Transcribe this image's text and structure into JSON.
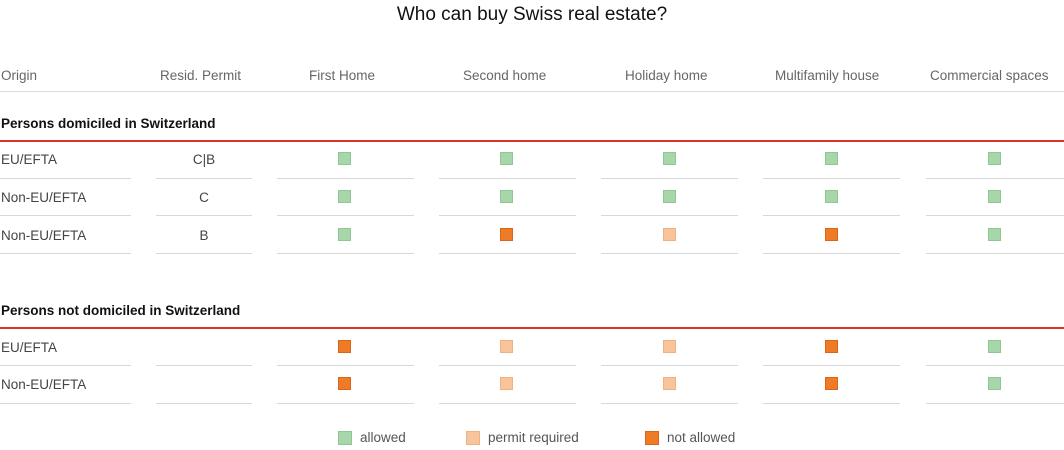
{
  "title": "Who can buy Swiss real estate?",
  "columns": [
    "Origin",
    "Resid. Permit",
    "First Home",
    "Second home",
    "Holiday home",
    "Multifamily house",
    "Commercial spaces"
  ],
  "colors": {
    "allowed": "#a6d6a9",
    "permit": "#f8c49c",
    "not_allowed": "#f07b26"
  },
  "sections": [
    {
      "title": "Persons domiciled in Switzerland",
      "rows": [
        {
          "origin": "EU/EFTA",
          "permit": "C|B",
          "status": [
            "allowed",
            "allowed",
            "allowed",
            "allowed",
            "allowed"
          ]
        },
        {
          "origin": "Non-EU/EFTA",
          "permit": "C",
          "status": [
            "allowed",
            "allowed",
            "allowed",
            "allowed",
            "allowed"
          ]
        },
        {
          "origin": "Non-EU/EFTA",
          "permit": "B",
          "status": [
            "allowed",
            "not_allowed",
            "permit",
            "not_allowed",
            "allowed"
          ]
        }
      ]
    },
    {
      "title": "Persons not domiciled in Switzerland",
      "rows": [
        {
          "origin": "EU/EFTA",
          "permit": "",
          "status": [
            "not_allowed",
            "permit",
            "permit",
            "not_allowed",
            "allowed"
          ]
        },
        {
          "origin": "Non-EU/EFTA",
          "permit": "",
          "status": [
            "not_allowed",
            "permit",
            "permit",
            "not_allowed",
            "allowed"
          ]
        }
      ]
    }
  ],
  "legend": [
    {
      "key": "allowed",
      "label": "allowed"
    },
    {
      "key": "permit",
      "label": "permit required"
    },
    {
      "key": "not_allowed",
      "label": "not allowed"
    }
  ]
}
